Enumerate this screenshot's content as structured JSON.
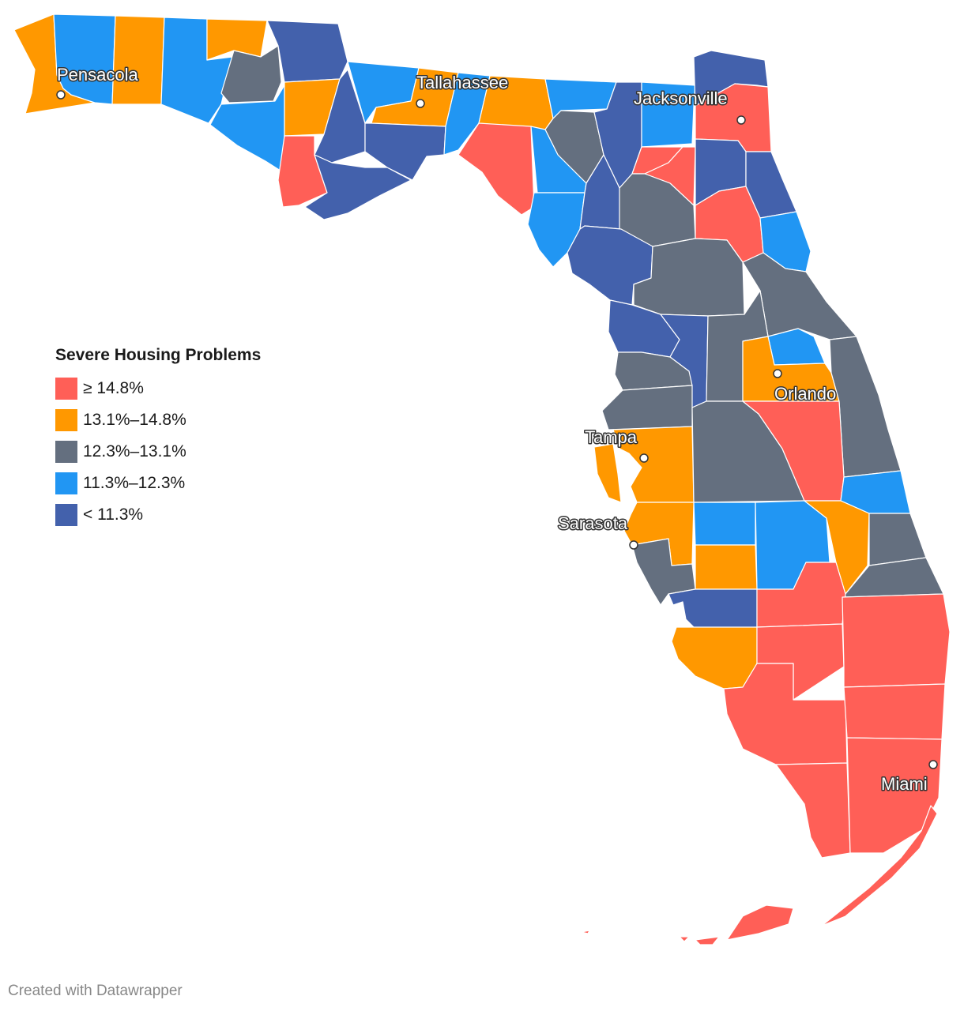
{
  "colors": {
    "red": "#ff5f57",
    "orange": "#ff9800",
    "gray": "#646f7f",
    "lightblue": "#2196f3",
    "darkblue": "#4361ac"
  },
  "legend": {
    "title": "Severe Housing Problems",
    "items": [
      {
        "label": "≥ 14.8%",
        "color": "#ff5f57"
      },
      {
        "label": "13.1%–14.8%",
        "color": "#ff9800"
      },
      {
        "label": "12.3%–13.1%",
        "color": "#646f7f"
      },
      {
        "label": "11.3%–12.3%",
        "color": "#2196f3"
      },
      {
        "label": "< 11.3%",
        "color": "#4361ac"
      }
    ]
  },
  "cities": {
    "pensacola": "Pensacola",
    "tallahassee": "Tallahassee",
    "jacksonville": "Jacksonville",
    "orlando": "Orlando",
    "tampa": "Tampa",
    "sarasota": "Sarasota",
    "miami": "Miami"
  },
  "credit": "Created with Datawrapper"
}
